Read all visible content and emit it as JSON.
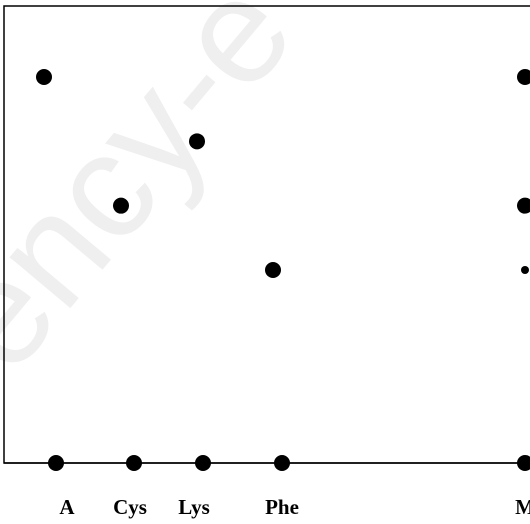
{
  "watermark": "ency-e",
  "chart_data": {
    "type": "scatter",
    "title": "",
    "xlabel": "",
    "ylabel": "",
    "grid": false,
    "legend": "none",
    "ylim": [
      0,
      6
    ],
    "categories": [
      "A",
      "Cys",
      "Lys",
      "Phe",
      "M"
    ],
    "x": [
      1,
      2,
      3,
      4,
      6
    ],
    "points": [
      {
        "category": "A",
        "y": 6
      },
      {
        "category": "Cys",
        "y": 4
      },
      {
        "category": "Lys",
        "y": 5
      },
      {
        "category": "Phe",
        "y": 3
      },
      {
        "category": "M",
        "y": 6
      },
      {
        "category": "M",
        "y": 4
      },
      {
        "category": "M",
        "y": 3,
        "small": true
      },
      {
        "category": "A",
        "y": 0
      },
      {
        "category": "Cys",
        "y": 0
      },
      {
        "category": "Lys",
        "y": 0
      },
      {
        "category": "Phe",
        "y": 0
      },
      {
        "category": "M",
        "y": 0
      }
    ],
    "colors": {
      "marker": "#000000",
      "axis": "#000000"
    }
  }
}
